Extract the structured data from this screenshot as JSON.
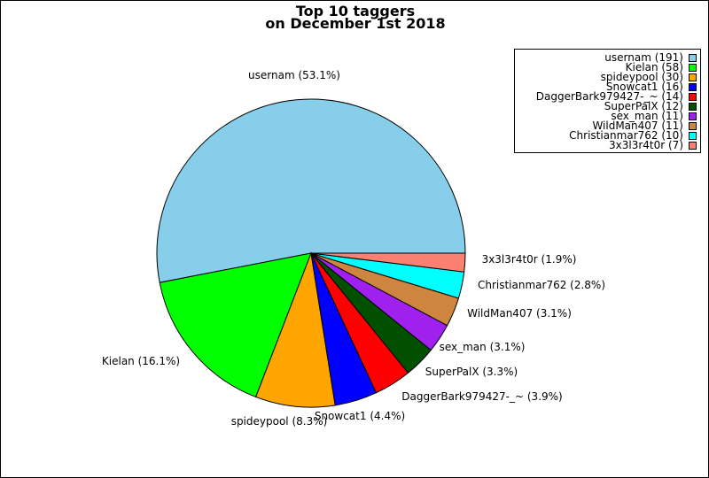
{
  "chart_data": {
    "type": "pie",
    "title": "Top 10 taggers",
    "subtitle": "on December 1st 2018",
    "slices": [
      {
        "label": "usernam (53.1%)",
        "legend": "usernam (191)",
        "value": 191,
        "color": "#87ceeb"
      },
      {
        "label": "Kielan (16.1%)",
        "legend": "Kielan (58)",
        "value": 58,
        "color": "#00ff00"
      },
      {
        "label": "spideypool (8.3%)",
        "legend": "spideypool (30)",
        "value": 30,
        "color": "#ffa500"
      },
      {
        "label": "Snowcat1 (4.4%)",
        "legend": "Snowcat1 (16)",
        "value": 16,
        "color": "#0000ff"
      },
      {
        "label": "DaggerBark979427-_~ (3.9%)",
        "legend": "DaggerBark979427-_~ (14)",
        "value": 14,
        "color": "#ff0000"
      },
      {
        "label": "SuperPalX (3.3%)",
        "legend": "SuperPalX (12)",
        "value": 12,
        "color": "#005000"
      },
      {
        "label": "sex_man (3.1%)",
        "legend": "sex_man (11)",
        "value": 11,
        "color": "#a020f0"
      },
      {
        "label": "WildMan407 (3.1%)",
        "legend": "WildMan407 (11)",
        "value": 11,
        "color": "#cd853f"
      },
      {
        "label": "Christianmar762 (2.8%)",
        "legend": "Christianmar762 (10)",
        "value": 10,
        "color": "#00ffff"
      },
      {
        "label": "3x3l3r4t0r (1.9%)",
        "legend": "3x3l3r4t0r (7)",
        "value": 7,
        "color": "#fa8072"
      }
    ],
    "legend_position": "top-right"
  }
}
